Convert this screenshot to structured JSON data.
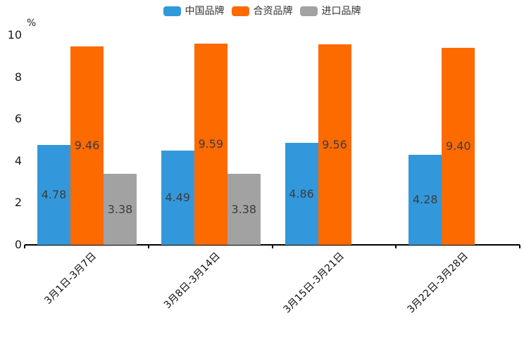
{
  "chart_data": {
    "type": "bar",
    "title": "",
    "unit_label": "%",
    "categories": [
      "3月1日-3月7日",
      "3月8日-3月14日",
      "3月15日-3月21日",
      "3月22日-3月28日"
    ],
    "series": [
      {
        "name": "中国品牌",
        "color": "#3398DB",
        "values": [
          4.78,
          4.49,
          4.86,
          4.28
        ]
      },
      {
        "name": "合资品牌",
        "color": "#FC6A00",
        "values": [
          9.46,
          9.59,
          9.56,
          9.4
        ]
      },
      {
        "name": "进口品牌",
        "color": "#A2A2A2",
        "values": [
          3.38,
          3.38,
          null,
          null
        ]
      }
    ],
    "ylim": [
      0,
      10
    ],
    "yticks": [
      0,
      2,
      4,
      6,
      8,
      10
    ],
    "legend_position": "top-center",
    "grid": false,
    "value_label_decimals": 2,
    "colors": {
      "axis": "#000000",
      "value_label": "#3C3C3C",
      "tick_label": "#1A1A1A",
      "background": "#FFFFFF"
    }
  }
}
